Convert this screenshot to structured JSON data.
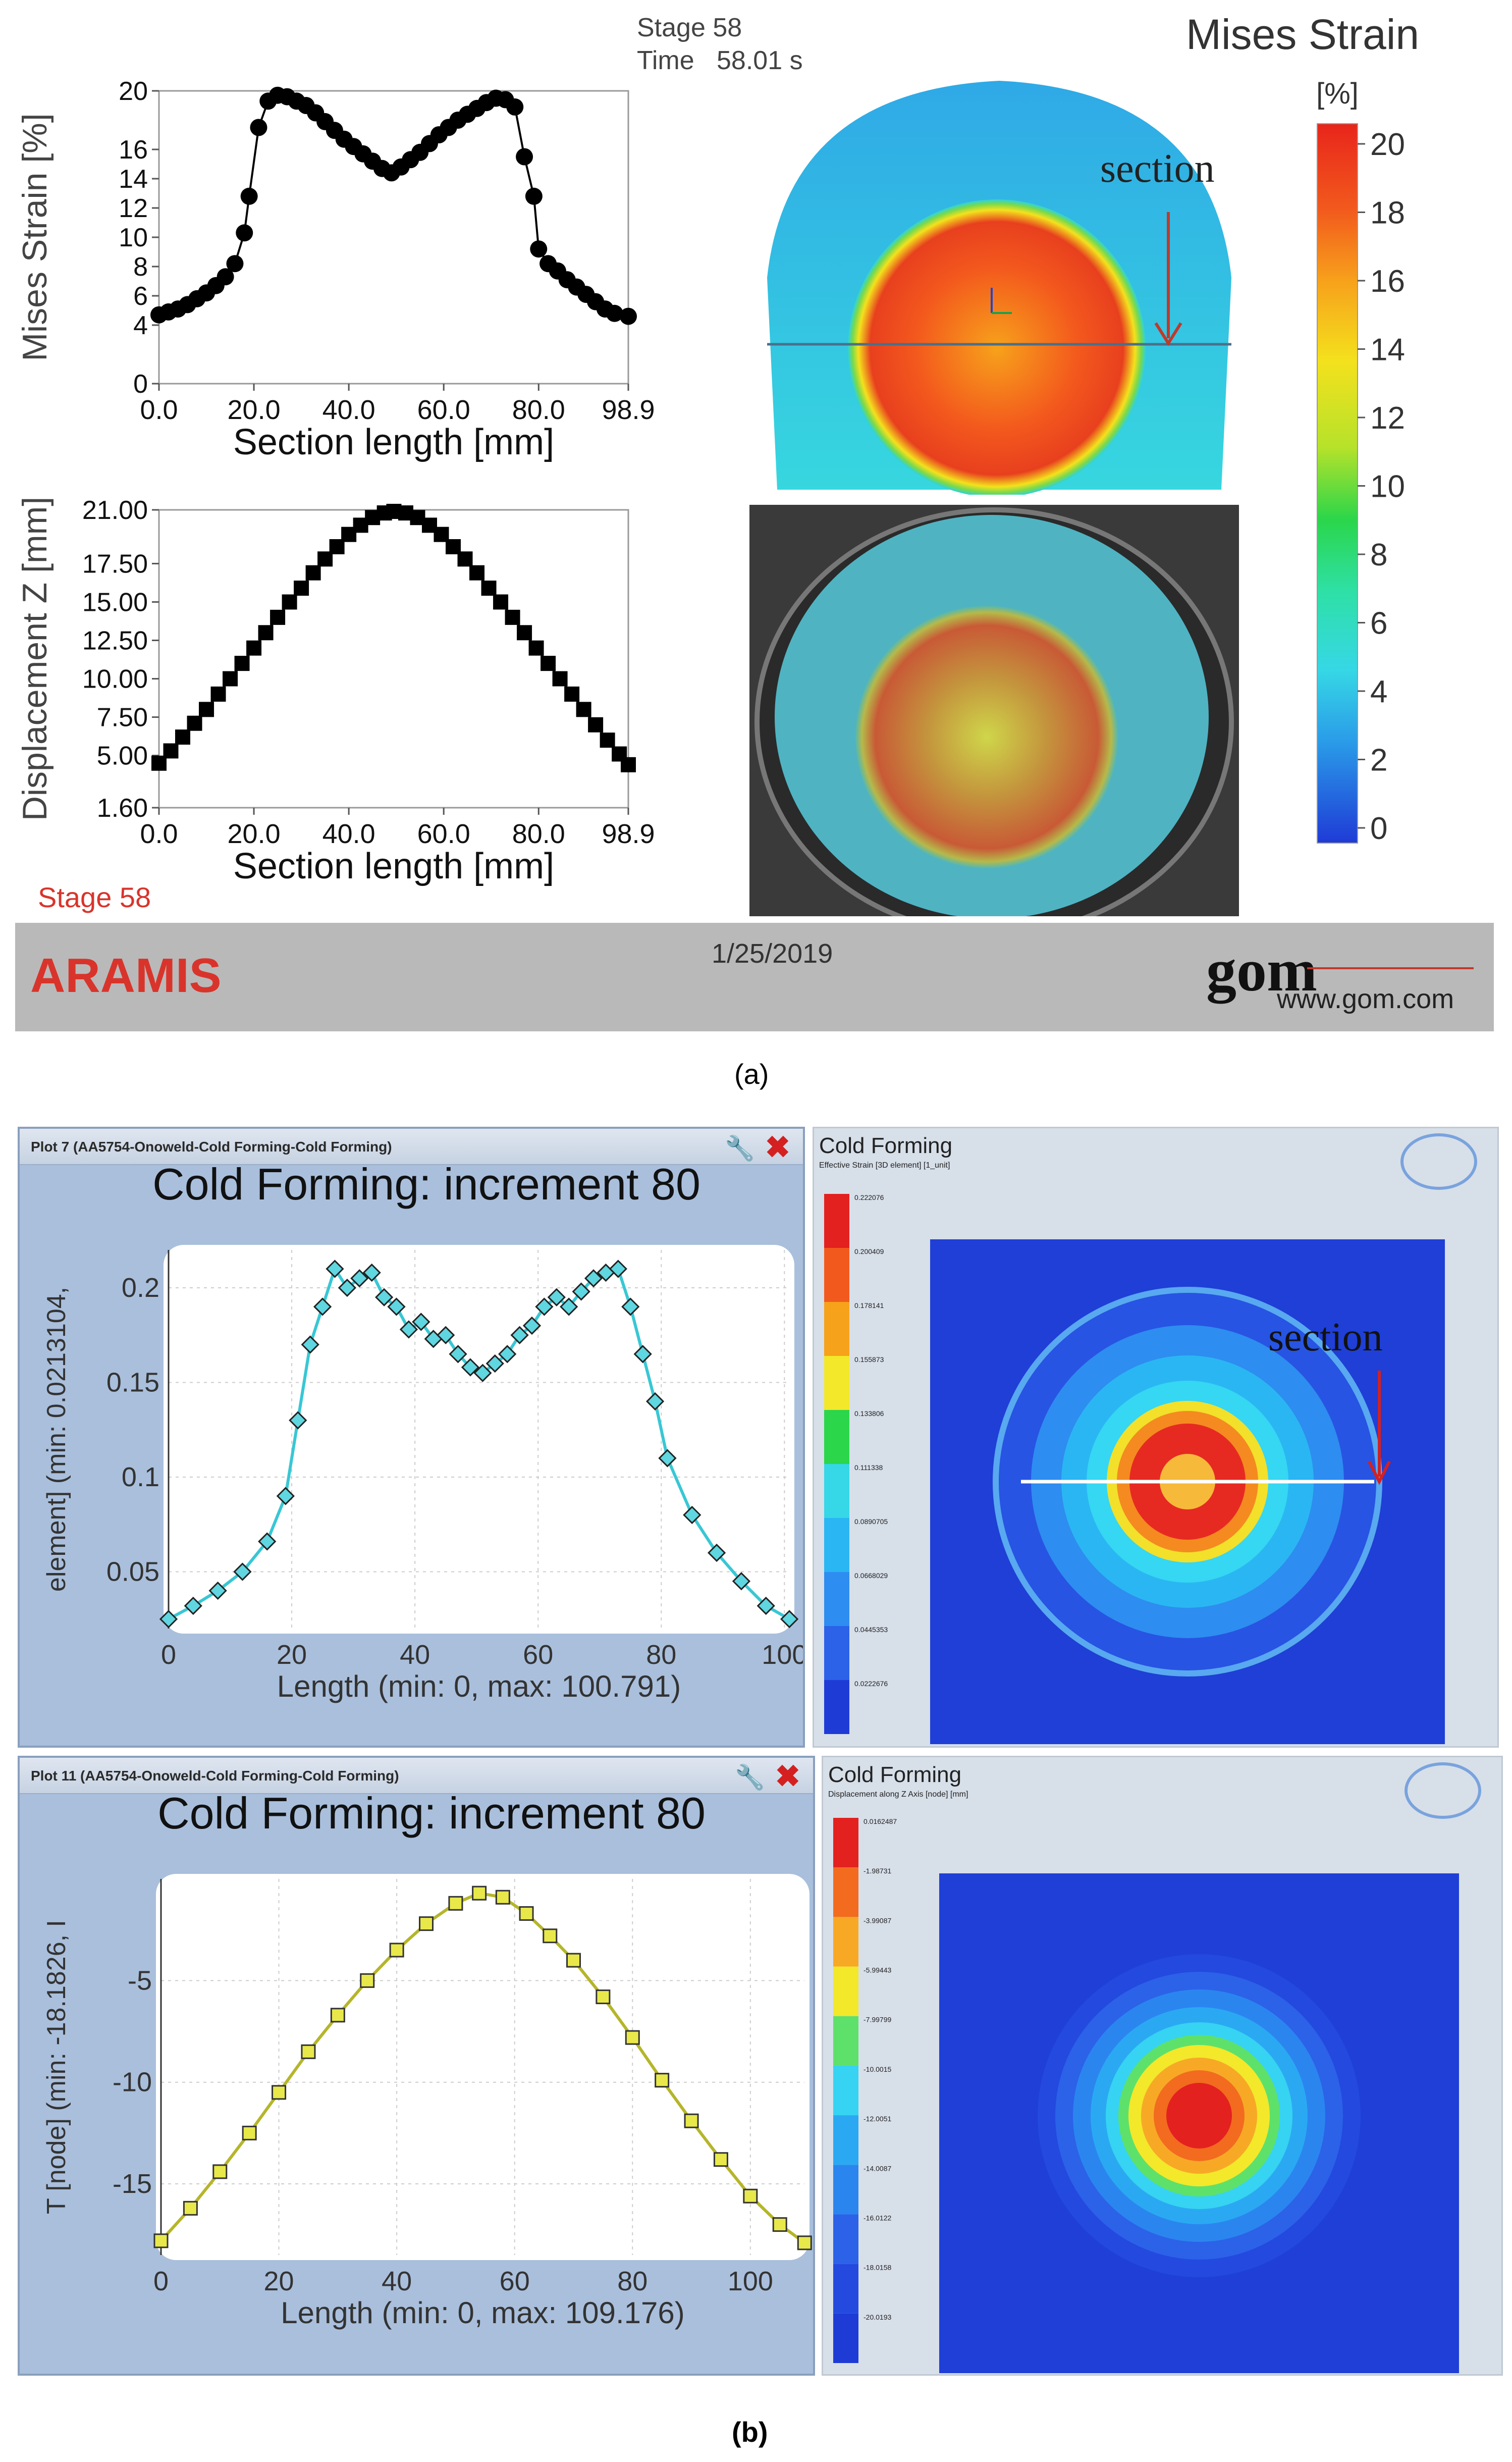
{
  "part_a": {
    "stage_label": "Stage 58",
    "time_label": "Time",
    "time_value": "58.01 s",
    "map_title": "Mises Strain",
    "colorbar_unit": "[%]",
    "colorbar_ticks": [
      "20",
      "18",
      "16",
      "14",
      "12",
      "10",
      "8",
      "6",
      "4",
      "2",
      "0"
    ],
    "section_label": "section",
    "footer_left": "ARAMIS",
    "footer_date": "1/25/2019",
    "footer_logo": "gom",
    "footer_url": "www.gom.com",
    "stage_note": "Stage 58",
    "caption": "(a)",
    "colors": {
      "accent_red": "#d9342b",
      "footer_bg": "#b9b9b9"
    }
  },
  "part_b": {
    "plot1_window_title": "Plot 7 (AA5754-Onoweld-Cold Forming-Cold Forming)",
    "plot2_window_title": "Plot 11 (AA5754-Onoweld-Cold Forming-Cold Forming)",
    "map1_title": "Cold Forming",
    "map1_subtitle": "Effective Strain [3D element] [1_unit]",
    "map1_levels": [
      "0.222076",
      "0.200409",
      "0.178141",
      "0.155873",
      "0.133806",
      "0.111338",
      "0.0890705",
      "0.0668029",
      "0.0445353",
      "0.0222676"
    ],
    "map2_title": "Cold Forming",
    "map2_subtitle": "Displacement along Z Axis [node] [mm]",
    "map2_levels": [
      "0.0162487",
      "-1.98731",
      "-3.99087",
      "-5.99443",
      "-7.99799",
      "-10.0015",
      "-12.0051",
      "-14.0087",
      "-16.0122",
      "-18.0158",
      "-20.0193"
    ],
    "section_label": "section",
    "caption": "(b)"
  },
  "chart_data": [
    {
      "type": "line",
      "title": "",
      "xlabel": "Section length [mm]",
      "ylabel": "Mises Strain [%]",
      "xlim": [
        0,
        98.9
      ],
      "ylim": [
        0,
        20
      ],
      "xticks": [
        "0.0",
        "20.0",
        "40.0",
        "60.0",
        "80.0",
        "98.9"
      ],
      "yticks": [
        "0",
        "4",
        "6",
        "8",
        "10",
        "12",
        "14",
        "16",
        "20"
      ],
      "x": [
        0,
        2,
        4,
        6,
        8,
        10,
        12,
        14,
        16,
        18,
        19,
        21,
        23,
        25,
        27,
        29,
        31,
        33,
        35,
        37,
        39,
        41,
        43,
        45,
        47,
        49,
        51,
        53,
        55,
        57,
        59,
        61,
        63,
        65,
        67,
        69,
        71,
        73,
        75,
        77,
        79,
        80,
        82,
        84,
        86,
        88,
        90,
        92,
        94,
        96,
        98.9
      ],
      "y": [
        4.7,
        4.9,
        5.1,
        5.4,
        5.8,
        6.2,
        6.7,
        7.3,
        8.2,
        10.3,
        12.8,
        17.5,
        19.3,
        19.7,
        19.6,
        19.3,
        19.0,
        18.5,
        17.9,
        17.3,
        16.7,
        16.2,
        15.7,
        15.2,
        14.7,
        14.4,
        14.8,
        15.3,
        15.8,
        16.4,
        17.0,
        17.5,
        18.0,
        18.4,
        18.8,
        19.2,
        19.5,
        19.4,
        18.9,
        15.5,
        12.8,
        9.2,
        8.2,
        7.7,
        7.1,
        6.6,
        6.1,
        5.6,
        5.1,
        4.8,
        4.6
      ]
    },
    {
      "type": "line",
      "title": "",
      "xlabel": "Section length [mm]",
      "ylabel": "Displacement Z [mm]",
      "xlim": [
        0,
        98.9
      ],
      "ylim": [
        1.6,
        21.0
      ],
      "xticks": [
        "0.0",
        "20.0",
        "40.0",
        "60.0",
        "80.0",
        "98.9"
      ],
      "yticks": [
        "21.00",
        "17.50",
        "15.00",
        "12.50",
        "10.00",
        "7.50",
        "5.00",
        "1.60"
      ],
      "x": [
        0,
        2.5,
        5,
        7.5,
        10,
        12.5,
        15,
        17.5,
        20,
        22.5,
        25,
        27.5,
        30,
        32.5,
        35,
        37.5,
        40,
        42.5,
        45,
        47.5,
        49.5,
        52,
        54.5,
        57,
        59.5,
        62,
        64.5,
        67,
        69.5,
        72,
        74.5,
        77,
        79.5,
        82,
        84.5,
        87,
        89.5,
        92,
        94.5,
        97,
        98.9
      ],
      "y": [
        4.5,
        5.3,
        6.2,
        7.1,
        8.0,
        9.0,
        10.0,
        11.0,
        12.0,
        13.0,
        14.0,
        15.0,
        15.9,
        16.9,
        17.8,
        18.6,
        19.4,
        20.0,
        20.5,
        20.8,
        20.9,
        20.8,
        20.5,
        20.0,
        19.4,
        18.6,
        17.8,
        16.9,
        15.9,
        15.0,
        14.0,
        13.0,
        12.0,
        11.0,
        10.0,
        9.0,
        8.0,
        7.0,
        6.0,
        5.1,
        4.4
      ]
    },
    {
      "type": "scatter",
      "title": "Cold Forming: increment 80",
      "xlabel": "Length (min: 0, max: 100.791)",
      "ylabel": "element] (min: 0.0213104,",
      "xlim": [
        0,
        100.791
      ],
      "ylim": [
        0.02,
        0.22
      ],
      "xticks": [
        "0",
        "20",
        "40",
        "60",
        "80",
        "100"
      ],
      "yticks": [
        "0.2",
        "0.15",
        "0.1",
        "0.05"
      ],
      "x": [
        0,
        4,
        8,
        12,
        16,
        19,
        21,
        23,
        25,
        27,
        29,
        31,
        33,
        35,
        37,
        39,
        41,
        43,
        45,
        47,
        49,
        51,
        53,
        55,
        57,
        59,
        61,
        63,
        65,
        67,
        69,
        71,
        73,
        75,
        77,
        79,
        81,
        85,
        89,
        93,
        97,
        100.8
      ],
      "y": [
        0.025,
        0.032,
        0.04,
        0.05,
        0.066,
        0.09,
        0.13,
        0.17,
        0.19,
        0.21,
        0.2,
        0.205,
        0.208,
        0.195,
        0.19,
        0.178,
        0.182,
        0.173,
        0.175,
        0.165,
        0.158,
        0.155,
        0.16,
        0.165,
        0.175,
        0.18,
        0.19,
        0.195,
        0.19,
        0.198,
        0.205,
        0.208,
        0.21,
        0.19,
        0.165,
        0.14,
        0.11,
        0.08,
        0.06,
        0.045,
        0.032,
        0.025
      ]
    },
    {
      "type": "scatter",
      "title": "Cold Forming: increment 80",
      "xlabel": "Length (min: 0, max: 109.176)",
      "ylabel": "T [node] (min: -18.1826, I",
      "xlim": [
        0,
        109.176
      ],
      "ylim": [
        -18.5,
        0
      ],
      "xticks": [
        "0",
        "20",
        "40",
        "60",
        "80",
        "100"
      ],
      "yticks": [
        "-5",
        "-10",
        "-15"
      ],
      "x": [
        0,
        5,
        10,
        15,
        20,
        25,
        30,
        35,
        40,
        45,
        50,
        54,
        58,
        62,
        66,
        70,
        75,
        80,
        85,
        90,
        95,
        100,
        105,
        109.2
      ],
      "y": [
        -17.8,
        -16.2,
        -14.4,
        -12.5,
        -10.5,
        -8.5,
        -6.7,
        -5.0,
        -3.5,
        -2.2,
        -1.2,
        -0.7,
        -0.9,
        -1.7,
        -2.8,
        -4.0,
        -5.8,
        -7.8,
        -9.9,
        -11.9,
        -13.8,
        -15.6,
        -17.0,
        -17.9
      ]
    }
  ]
}
